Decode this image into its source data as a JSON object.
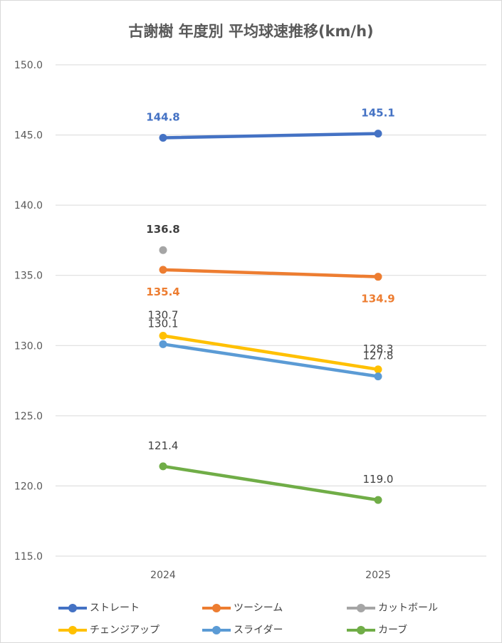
{
  "chart_data": {
    "type": "line",
    "title": "古謝樹 年度別 平均球速推移(km/h)",
    "categories": [
      "2024",
      "2025"
    ],
    "ylim": [
      115.0,
      150.0
    ],
    "yticks": [
      "150.0",
      "145.0",
      "140.0",
      "135.0",
      "130.0",
      "125.0",
      "120.0",
      "115.0"
    ],
    "grid": true,
    "legend_position": "bottom",
    "series": [
      {
        "name": "ストレート",
        "color": "#4472c4",
        "values": [
          144.8,
          145.1
        ],
        "labels": [
          "144.8",
          "145.1"
        ],
        "label_pos": [
          "above",
          "above"
        ],
        "label_color": "#4472c4",
        "label_bold": true
      },
      {
        "name": "ツーシーム",
        "color": "#ed7d31",
        "values": [
          135.4,
          134.9
        ],
        "labels": [
          "135.4",
          "134.9"
        ],
        "label_pos": [
          "below",
          "below"
        ],
        "label_color": "#ed7d31",
        "label_bold": true
      },
      {
        "name": "カットボール",
        "color": "#a5a5a5",
        "values": [
          136.8,
          null
        ],
        "labels": [
          "136.8",
          ""
        ],
        "label_pos": [
          "above",
          "above"
        ],
        "label_color": "#404040",
        "label_bold": true
      },
      {
        "name": "チェンジアップ",
        "color": "#ffc000",
        "values": [
          130.7,
          128.3
        ],
        "labels": [
          "130.7",
          "128.3"
        ],
        "label_pos": [
          "above",
          "above"
        ],
        "label_color": "#404040",
        "label_bold": false
      },
      {
        "name": "スライダー",
        "color": "#5b9bd5",
        "values": [
          130.1,
          127.8
        ],
        "labels": [
          "130.1",
          "127.8"
        ],
        "label_pos": [
          "above",
          "above"
        ],
        "label_color": "#404040",
        "label_bold": false
      },
      {
        "name": "カーブ",
        "color": "#70ad47",
        "values": [
          121.4,
          119.0
        ],
        "labels": [
          "121.4",
          "119.0"
        ],
        "label_pos": [
          "above",
          "above"
        ],
        "label_color": "#404040",
        "label_bold": false
      }
    ]
  }
}
